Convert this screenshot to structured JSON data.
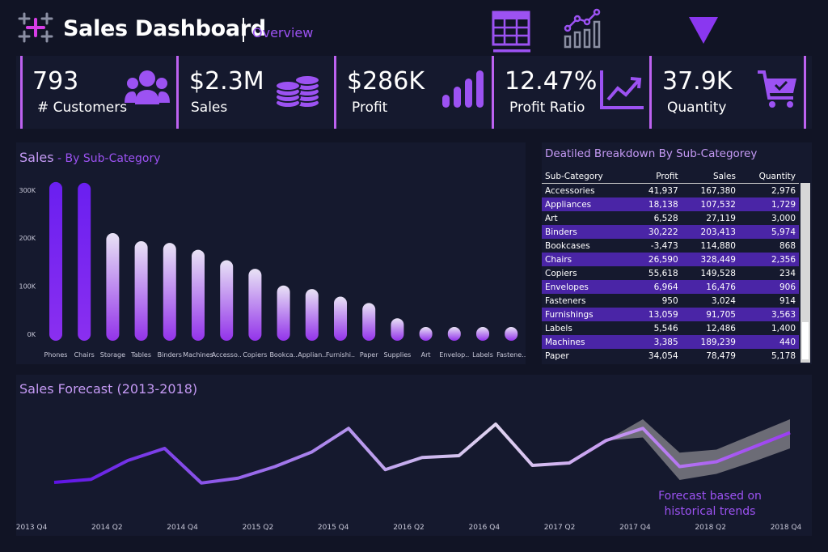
{
  "header": {
    "title": "Sales Dashboard",
    "subtitle": "Overview",
    "logo_icon": "tableau-plus-logo-icon",
    "tabs": [
      {
        "icon": "table-grid-icon",
        "active": true
      },
      {
        "icon": "bar-line-chart-icon",
        "active": false
      }
    ],
    "filter_icon": "triangle-down-filter-icon"
  },
  "kpis": [
    {
      "value": "793",
      "label": "# Customers",
      "icon": "users-icon"
    },
    {
      "value": "$2.3M",
      "label": "Sales",
      "icon": "coins-stack-icon"
    },
    {
      "value": "$286K",
      "label": "Profit",
      "icon": "bar-signal-icon"
    },
    {
      "value": "12.47%",
      "label": "Profit Ratio",
      "icon": "trend-up-chart-icon"
    },
    {
      "value": "37.9K",
      "label": "Quantity",
      "icon": "shopping-cart-icon"
    }
  ],
  "sales_panel": {
    "title": "Sales",
    "subtitle": " - By Sub-Category"
  },
  "breakdown": {
    "title": "Deatiled Breakdown By Sub-Categorey",
    "columns": [
      "Sub-Category",
      "Profit",
      "Sales",
      "Quantity"
    ],
    "rows": [
      [
        "Accessories",
        "41,937",
        "167,380",
        "2,976"
      ],
      [
        "Appliances",
        "18,138",
        "107,532",
        "1,729"
      ],
      [
        "Art",
        "6,528",
        "27,119",
        "3,000"
      ],
      [
        "Binders",
        "30,222",
        "203,413",
        "5,974"
      ],
      [
        "Bookcases",
        "-3,473",
        "114,880",
        "868"
      ],
      [
        "Chairs",
        "26,590",
        "328,449",
        "2,356"
      ],
      [
        "Copiers",
        "55,618",
        "149,528",
        "234"
      ],
      [
        "Envelopes",
        "6,964",
        "16,476",
        "906"
      ],
      [
        "Fasteners",
        "950",
        "3,024",
        "914"
      ],
      [
        "Furnishings",
        "13,059",
        "91,705",
        "3,563"
      ],
      [
        "Labels",
        "5,546",
        "12,486",
        "1,400"
      ],
      [
        "Machines",
        "3,385",
        "189,239",
        "440"
      ],
      [
        "Paper",
        "34,054",
        "78,479",
        "5,178"
      ]
    ]
  },
  "forecast_panel": {
    "title": "Sales Forecast (2013-2018)",
    "annotation_line1": "Forecast based on",
    "annotation_line2": "historical trends"
  },
  "colors": {
    "background": "#111425",
    "panel": "#15192e",
    "accent": "#9c52f2",
    "highlight_row": "#4a25a6",
    "kpi_bar": "#bd62f0"
  },
  "chart_data": [
    {
      "type": "bar",
      "title": "Sales - By Sub-Category",
      "categories": [
        "Phones",
        "Chairs",
        "Storage",
        "Tables",
        "Binders",
        "Machines",
        "Accesso..",
        "Copiers",
        "Bookca..",
        "Applian..",
        "Furnishi..",
        "Paper",
        "Supplies",
        "Art",
        "Envelop..",
        "Labels",
        "Fastene.."
      ],
      "values": [
        330007,
        328449,
        223844,
        206966,
        203413,
        189239,
        167380,
        149528,
        114880,
        107532,
        91705,
        78479,
        46674,
        27119,
        16476,
        12486,
        3024
      ],
      "yticks": [
        "0K",
        "100K",
        "200K",
        "300K"
      ],
      "ylim": [
        0,
        340000
      ],
      "grid": false,
      "xlabel": "",
      "ylabel": ""
    },
    {
      "type": "line",
      "title": "Sales Forecast (2013-2018)",
      "x_labels": [
        "2013 Q4",
        "2014 Q2",
        "2014 Q4",
        "2015 Q2",
        "2015 Q4",
        "2016 Q2",
        "2016 Q4",
        "2017 Q2",
        "2017 Q4",
        "2018 Q2",
        "2018 Q4"
      ],
      "series": [
        {
          "name": "",
          "values": [
            [
              0,
              76000
            ],
            [
              1,
              81000
            ],
            [
              2,
              112000
            ],
            [
              3,
              132000
            ],
            [
              4,
              75000
            ],
            [
              5,
              83000
            ],
            [
              6,
              102000
            ],
            [
              7,
              126000
            ],
            [
              8,
              165000
            ],
            [
              9,
              97000
            ],
            [
              10,
              117000
            ],
            [
              11,
              120000
            ],
            [
              12,
              172000
            ],
            [
              13,
              104000
            ],
            [
              14,
              108000
            ],
            [
              15,
              145000
            ],
            [
              16,
              165000
            ],
            [
              17,
              102000
            ],
            [
              18,
              110000
            ],
            [
              19,
              134000
            ],
            [
              20,
              158000
            ]
          ]
        },
        {
          "name": "",
          "forecast_band": [
            [
              15,
              145000,
              145000
            ],
            [
              16,
              150000,
              180000
            ],
            [
              17,
              80000,
              125000
            ],
            [
              18,
              90000,
              130000
            ],
            [
              19,
              110000,
              155000
            ],
            [
              20,
              132000,
              180000
            ]
          ]
        }
      ],
      "ylim": [
        40000,
        200000
      ]
    }
  ]
}
